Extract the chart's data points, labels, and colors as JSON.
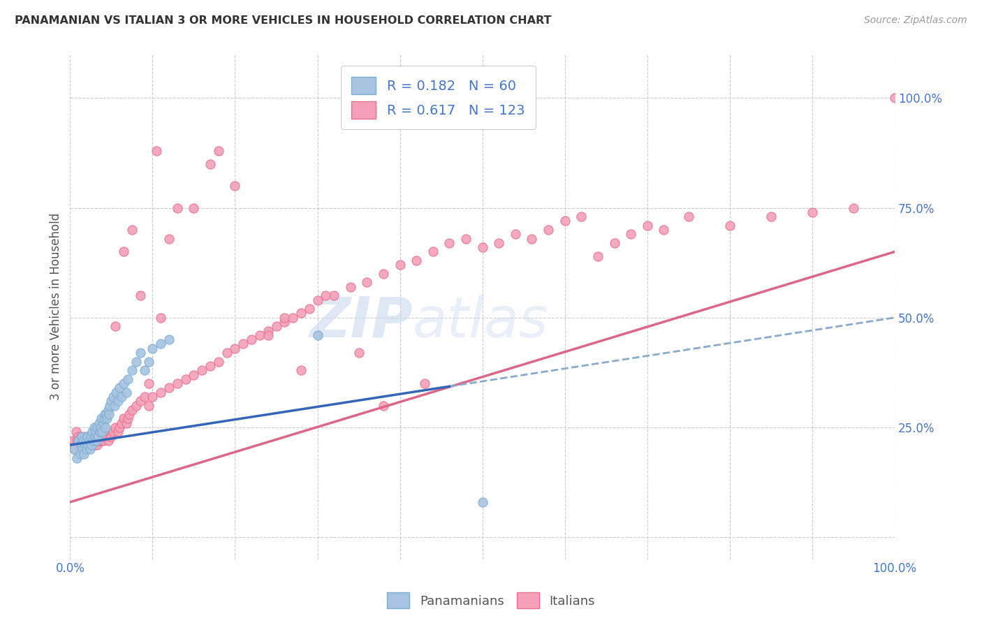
{
  "title": "PANAMANIAN VS ITALIAN 3 OR MORE VEHICLES IN HOUSEHOLD CORRELATION CHART",
  "source": "Source: ZipAtlas.com",
  "ylabel": "3 or more Vehicles in Household",
  "xlim": [
    0.0,
    1.0
  ],
  "ylim": [
    -0.05,
    1.1
  ],
  "x_ticks": [
    0.0,
    0.1,
    0.2,
    0.3,
    0.4,
    0.5,
    0.6,
    0.7,
    0.8,
    0.9,
    1.0
  ],
  "x_tick_labels": [
    "0.0%",
    "",
    "",
    "",
    "",
    "",
    "",
    "",
    "",
    "",
    "100.0%"
  ],
  "y_ticks_left": [],
  "y_ticks_right": [
    0.0,
    0.25,
    0.5,
    0.75,
    1.0
  ],
  "y_tick_labels_right": [
    "",
    "25.0%",
    "50.0%",
    "75.0%",
    "100.0%"
  ],
  "background_color": "#ffffff",
  "grid_color": "#cccccc",
  "watermark_zip": "ZIP",
  "watermark_atlas": "atlas",
  "legend_R1": "0.182",
  "legend_N1": "60",
  "legend_R2": "0.617",
  "legend_N2": "123",
  "blue_fill": "#a8c4e0",
  "blue_edge": "#7aafd4",
  "pink_fill": "#f4a0b8",
  "pink_edge": "#e87090",
  "trendline_blue_solid": "#3366bb",
  "trendline_blue_dashed": "#88aacc",
  "trendline_pink_solid": "#dd6688",
  "tick_color": "#4477cc",
  "legend_text_color": "#4477cc",
  "title_color": "#333333",
  "source_color": "#999999",
  "pan_x": [
    0.005,
    0.008,
    0.01,
    0.012,
    0.013,
    0.014,
    0.015,
    0.016,
    0.017,
    0.018,
    0.019,
    0.02,
    0.021,
    0.022,
    0.023,
    0.024,
    0.025,
    0.026,
    0.027,
    0.028,
    0.029,
    0.03,
    0.031,
    0.032,
    0.033,
    0.034,
    0.035,
    0.036,
    0.037,
    0.038,
    0.039,
    0.04,
    0.041,
    0.042,
    0.043,
    0.044,
    0.045,
    0.046,
    0.047,
    0.048,
    0.05,
    0.052,
    0.054,
    0.056,
    0.058,
    0.06,
    0.062,
    0.065,
    0.068,
    0.07,
    0.075,
    0.08,
    0.085,
    0.09,
    0.095,
    0.1,
    0.11,
    0.12,
    0.3,
    0.5
  ],
  "pan_y": [
    0.2,
    0.18,
    0.22,
    0.19,
    0.21,
    0.23,
    0.2,
    0.22,
    0.19,
    0.21,
    0.22,
    0.2,
    0.23,
    0.21,
    0.22,
    0.2,
    0.23,
    0.21,
    0.24,
    0.22,
    0.25,
    0.23,
    0.24,
    0.22,
    0.25,
    0.23,
    0.26,
    0.24,
    0.25,
    0.27,
    0.24,
    0.26,
    0.27,
    0.28,
    0.25,
    0.28,
    0.27,
    0.29,
    0.28,
    0.3,
    0.31,
    0.32,
    0.3,
    0.33,
    0.31,
    0.34,
    0.32,
    0.35,
    0.33,
    0.36,
    0.38,
    0.4,
    0.42,
    0.38,
    0.4,
    0.43,
    0.44,
    0.45,
    0.46,
    0.08
  ],
  "ita_x": [
    0.003,
    0.005,
    0.007,
    0.008,
    0.009,
    0.01,
    0.011,
    0.012,
    0.013,
    0.014,
    0.015,
    0.016,
    0.017,
    0.018,
    0.019,
    0.02,
    0.021,
    0.022,
    0.023,
    0.024,
    0.025,
    0.026,
    0.027,
    0.028,
    0.029,
    0.03,
    0.031,
    0.032,
    0.033,
    0.034,
    0.035,
    0.036,
    0.037,
    0.038,
    0.039,
    0.04,
    0.042,
    0.044,
    0.046,
    0.048,
    0.05,
    0.052,
    0.055,
    0.058,
    0.06,
    0.062,
    0.065,
    0.068,
    0.07,
    0.072,
    0.075,
    0.08,
    0.085,
    0.09,
    0.095,
    0.1,
    0.11,
    0.12,
    0.13,
    0.14,
    0.15,
    0.16,
    0.17,
    0.18,
    0.19,
    0.2,
    0.21,
    0.22,
    0.23,
    0.24,
    0.25,
    0.26,
    0.27,
    0.28,
    0.29,
    0.3,
    0.32,
    0.34,
    0.36,
    0.38,
    0.4,
    0.42,
    0.44,
    0.46,
    0.48,
    0.5,
    0.52,
    0.54,
    0.56,
    0.58,
    0.6,
    0.62,
    0.64,
    0.66,
    0.68,
    0.7,
    0.72,
    0.75,
    0.8,
    0.85,
    0.9,
    0.95,
    1.0,
    0.43,
    0.38,
    0.35,
    0.28,
    0.31,
    0.26,
    0.24,
    0.18,
    0.2,
    0.17,
    0.15,
    0.13,
    0.12,
    0.11,
    0.105,
    0.095,
    0.085,
    0.075,
    0.065,
    0.055
  ],
  "ita_y": [
    0.22,
    0.2,
    0.24,
    0.22,
    0.21,
    0.23,
    0.22,
    0.21,
    0.23,
    0.22,
    0.21,
    0.22,
    0.2,
    0.23,
    0.22,
    0.21,
    0.23,
    0.22,
    0.21,
    0.23,
    0.22,
    0.21,
    0.22,
    0.21,
    0.23,
    0.21,
    0.22,
    0.23,
    0.21,
    0.22,
    0.23,
    0.22,
    0.24,
    0.22,
    0.23,
    0.22,
    0.24,
    0.23,
    0.22,
    0.24,
    0.23,
    0.24,
    0.25,
    0.24,
    0.25,
    0.26,
    0.27,
    0.26,
    0.27,
    0.28,
    0.29,
    0.3,
    0.31,
    0.32,
    0.3,
    0.32,
    0.33,
    0.34,
    0.35,
    0.36,
    0.37,
    0.38,
    0.39,
    0.4,
    0.42,
    0.43,
    0.44,
    0.45,
    0.46,
    0.47,
    0.48,
    0.49,
    0.5,
    0.51,
    0.52,
    0.54,
    0.55,
    0.57,
    0.58,
    0.6,
    0.62,
    0.63,
    0.65,
    0.67,
    0.68,
    0.66,
    0.67,
    0.69,
    0.68,
    0.7,
    0.72,
    0.73,
    0.64,
    0.67,
    0.69,
    0.71,
    0.7,
    0.73,
    0.71,
    0.73,
    0.74,
    0.75,
    1.0,
    0.35,
    0.3,
    0.42,
    0.38,
    0.55,
    0.5,
    0.46,
    0.88,
    0.8,
    0.85,
    0.75,
    0.75,
    0.68,
    0.5,
    0.88,
    0.35,
    0.55,
    0.7,
    0.65,
    0.48
  ]
}
